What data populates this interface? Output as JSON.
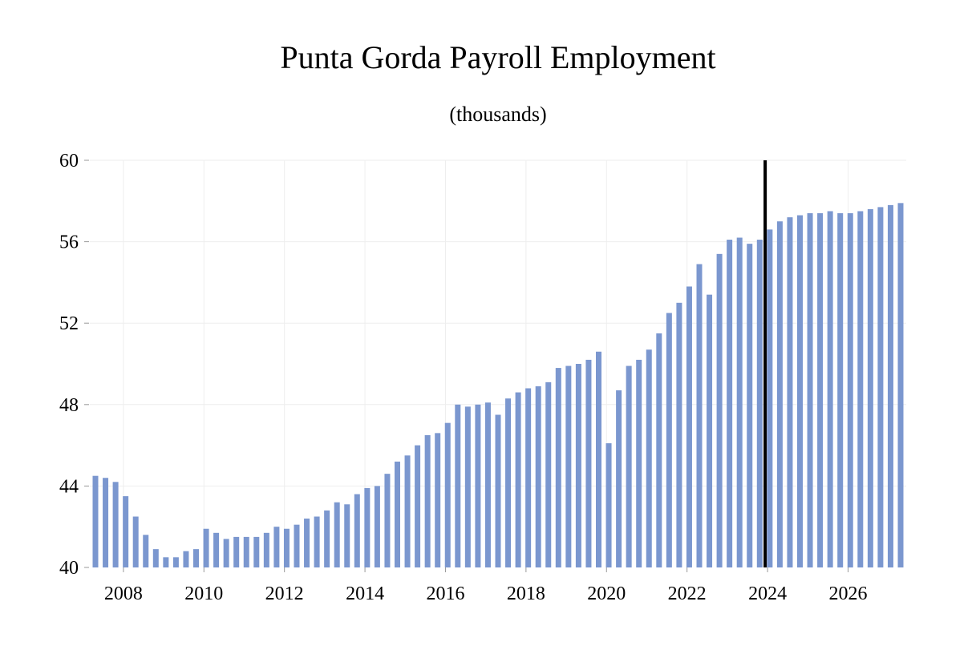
{
  "chart_data": {
    "type": "bar",
    "title": "Punta Gorda Payroll Employment",
    "subtitle": "(thousands)",
    "xlabel": "",
    "ylabel": "",
    "ylim": [
      40,
      60
    ],
    "yticks": [
      40,
      44,
      48,
      52,
      56,
      60
    ],
    "xticks": [
      "2008",
      "2010",
      "2012",
      "2014",
      "2016",
      "2018",
      "2020",
      "2022",
      "2024",
      "2026"
    ],
    "start_year": 2007,
    "start_quarter": 2,
    "grid": true,
    "bar_color": "#7b97cf",
    "forecast_line_color": "#000000",
    "forecast_start_index": 67,
    "series": [
      {
        "values": [
          44.5,
          44.4,
          44.2,
          43.5,
          42.5,
          41.6,
          40.9,
          40.5,
          40.5,
          40.8,
          40.9,
          41.9,
          41.7,
          41.4,
          41.5,
          41.5,
          41.5,
          41.7,
          42.0,
          41.9,
          42.1,
          42.4,
          42.5,
          42.8,
          43.2,
          43.1,
          43.6,
          43.9,
          44.0,
          44.6,
          45.2,
          45.5,
          46.0,
          46.5,
          46.6,
          47.1,
          48.0,
          47.9,
          48.0,
          48.1,
          47.5,
          48.3,
          48.6,
          48.8,
          48.9,
          49.1,
          49.8,
          49.9,
          50.0,
          50.2,
          50.6,
          46.1,
          48.7,
          49.9,
          50.2,
          50.7,
          51.5,
          52.5,
          53.0,
          53.8,
          54.9,
          53.4,
          55.4,
          56.1,
          56.2,
          55.9,
          56.1,
          56.6,
          57.0,
          57.2,
          57.3,
          57.4,
          57.4,
          57.5,
          57.4,
          57.4,
          57.5,
          57.6,
          57.7,
          57.8,
          57.9
        ]
      }
    ]
  }
}
